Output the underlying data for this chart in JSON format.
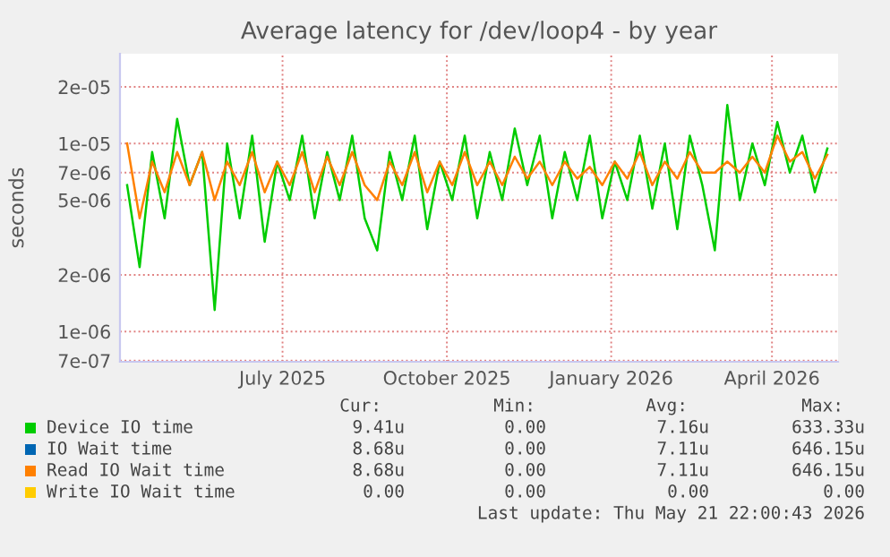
{
  "chart_data": {
    "type": "line",
    "title": "Average latency for /dev/loop4 - by year",
    "ylabel": "seconds",
    "log": true,
    "grid": true,
    "legend": "bottom",
    "line_style": "solid",
    "marker": "none",
    "x": [
      "2025-04-05",
      "2025-04-12",
      "2025-04-19",
      "2025-04-26",
      "2025-05-03",
      "2025-05-10",
      "2025-05-17",
      "2025-05-24",
      "2025-05-31",
      "2025-06-07",
      "2025-06-14",
      "2025-06-21",
      "2025-06-28",
      "2025-07-05",
      "2025-07-12",
      "2025-07-19",
      "2025-07-26",
      "2025-08-02",
      "2025-08-09",
      "2025-08-16",
      "2025-08-23",
      "2025-08-30",
      "2025-09-06",
      "2025-09-13",
      "2025-09-20",
      "2025-09-27",
      "2025-10-04",
      "2025-10-11",
      "2025-10-18",
      "2025-10-25",
      "2025-11-01",
      "2025-11-08",
      "2025-11-15",
      "2025-11-22",
      "2025-11-29",
      "2025-12-06",
      "2025-12-13",
      "2025-12-20",
      "2025-12-27",
      "2026-01-03",
      "2026-01-10",
      "2026-01-17",
      "2026-01-24",
      "2026-01-31",
      "2026-02-07",
      "2026-02-14",
      "2026-02-21",
      "2026-02-28",
      "2026-03-07",
      "2026-03-14",
      "2026-03-21",
      "2026-03-28",
      "2026-04-04",
      "2026-04-11",
      "2026-04-18",
      "2026-04-25",
      "2026-05-02"
    ],
    "xlim": [
      "2025-04-01",
      "2026-05-08"
    ],
    "xticks": [
      {
        "value": "2025-07-01",
        "label": "July 2025"
      },
      {
        "value": "2025-10-01",
        "label": "October 2025"
      },
      {
        "value": "2026-01-01",
        "label": "January 2026"
      },
      {
        "value": "2026-04-01",
        "label": "April 2026"
      }
    ],
    "ylim": [
      6.9e-07,
      3e-05
    ],
    "yticks": [
      {
        "value": 7e-07,
        "label": "7e-07"
      },
      {
        "value": 1e-06,
        "label": "1e-06"
      },
      {
        "value": 2e-06,
        "label": "2e-06"
      },
      {
        "value": 5e-06,
        "label": "5e-06"
      },
      {
        "value": 7e-06,
        "label": "7e-06"
      },
      {
        "value": 1e-05,
        "label": "1e-05"
      },
      {
        "value": 2e-05,
        "label": "2e-05"
      }
    ],
    "series": [
      {
        "name": "Device IO time",
        "color": "#00cc00",
        "values": [
          6e-06,
          2.2e-06,
          9e-06,
          4e-06,
          1.35e-05,
          6e-06,
          9e-06,
          1.3e-06,
          1e-05,
          4e-06,
          1.1e-05,
          3e-06,
          8e-06,
          5e-06,
          1.1e-05,
          4e-06,
          9e-06,
          5e-06,
          1.1e-05,
          4e-06,
          2.7e-06,
          9e-06,
          5e-06,
          1.1e-05,
          3.5e-06,
          8e-06,
          5e-06,
          1.1e-05,
          4e-06,
          9e-06,
          5e-06,
          1.2e-05,
          6e-06,
          1.1e-05,
          4e-06,
          9e-06,
          5e-06,
          1.1e-05,
          4e-06,
          8e-06,
          5e-06,
          1.1e-05,
          4.5e-06,
          1e-05,
          3.5e-06,
          1.1e-05,
          6e-06,
          2.7e-06,
          1.6e-05,
          5e-06,
          1e-05,
          6e-06,
          1.3e-05,
          7e-06,
          1.1e-05,
          5.5e-06,
          9.4e-06
        ]
      },
      {
        "name": "IO Wait time",
        "color": "#0066b3",
        "values": [
          null,
          null,
          null,
          null,
          null,
          null,
          null,
          null,
          null,
          null,
          null,
          null,
          null,
          null,
          null,
          null,
          null,
          null,
          null,
          null,
          null,
          null,
          null,
          null,
          null,
          null,
          null,
          null,
          null,
          null,
          null,
          null,
          null,
          null,
          null,
          null,
          null,
          null,
          null,
          null,
          null,
          null,
          null,
          null,
          null,
          null,
          null,
          null,
          null,
          null,
          null,
          null,
          null,
          null,
          null,
          null,
          null
        ]
      },
      {
        "name": "Read IO Wait time",
        "color": "#ff8000",
        "values": [
          1e-05,
          4e-06,
          8e-06,
          5.5e-06,
          9e-06,
          6e-06,
          9e-06,
          5e-06,
          8e-06,
          6e-06,
          9e-06,
          5.5e-06,
          8e-06,
          6e-06,
          9e-06,
          5.5e-06,
          8.5e-06,
          6e-06,
          9e-06,
          6e-06,
          5e-06,
          8e-06,
          6e-06,
          9e-06,
          5.5e-06,
          8e-06,
          6e-06,
          9e-06,
          6e-06,
          8e-06,
          6e-06,
          8.5e-06,
          6.5e-06,
          8e-06,
          6e-06,
          8e-06,
          6.5e-06,
          7.5e-06,
          6e-06,
          8e-06,
          6.5e-06,
          9e-06,
          6e-06,
          8e-06,
          6.5e-06,
          9e-06,
          7e-06,
          7e-06,
          8e-06,
          7e-06,
          8.5e-06,
          7e-06,
          1.1e-05,
          8e-06,
          9e-06,
          6.5e-06,
          8.7e-06
        ]
      },
      {
        "name": "Write IO Wait time",
        "color": "#ffcc00",
        "values": [
          null,
          null,
          null,
          null,
          null,
          null,
          null,
          null,
          null,
          null,
          null,
          null,
          null,
          null,
          null,
          null,
          null,
          null,
          null,
          null,
          null,
          null,
          null,
          null,
          null,
          null,
          null,
          null,
          null,
          null,
          null,
          null,
          null,
          null,
          null,
          null,
          null,
          null,
          null,
          null,
          null,
          null,
          null,
          null,
          null,
          null,
          null,
          null,
          null,
          null,
          null,
          null,
          null,
          null,
          null,
          null,
          null
        ]
      }
    ],
    "annotations": [
      "Cur:",
      "Min:",
      "Avg:",
      "Max:",
      "9.41u",
      "0.00",
      "7.16u",
      "633.33u",
      "8.68u",
      "0.00",
      "7.11u",
      "646.15u",
      "8.68u",
      "0.00",
      "7.11u",
      "646.15u",
      "0.00",
      "0.00",
      "0.00",
      "0.00",
      "Last update: Thu May 21 22:00:43 2026"
    ]
  }
}
